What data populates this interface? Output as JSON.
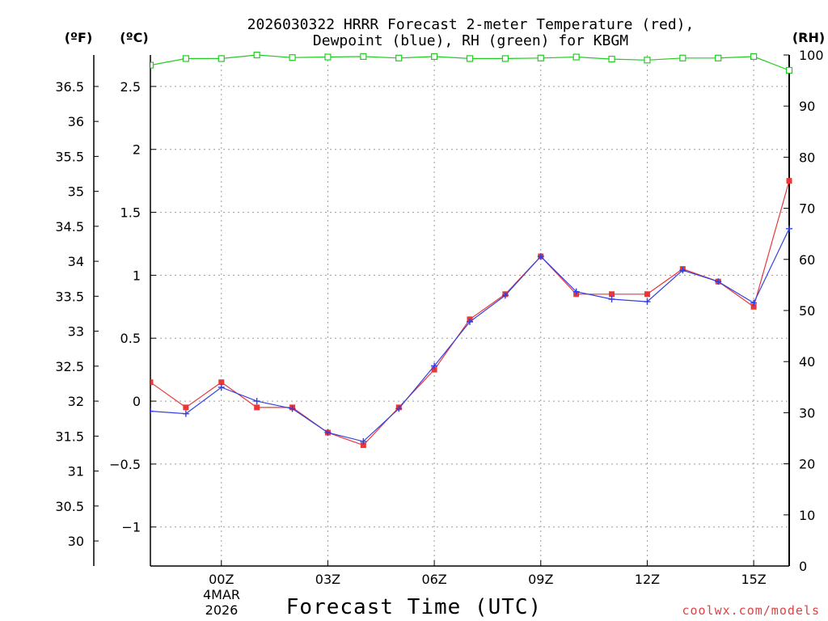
{
  "chart_data": {
    "type": "line",
    "title": "2026030322 HRRR Forecast 2-meter Temperature (red),",
    "subtitle": "Dewpoint (blue), RH (green) for KBGM",
    "xlabel": "Forecast Time (UTC)",
    "credit": "coolwx.com/models",
    "units": {
      "fahrenheit": "(ºF)",
      "celsius": "(ºC)",
      "rh": "(RH)"
    },
    "x_range": [
      22,
      40
    ],
    "x_ticks": [
      {
        "x": 24,
        "label": "00Z"
      },
      {
        "x": 27,
        "label": "03Z"
      },
      {
        "x": 30,
        "label": "06Z"
      },
      {
        "x": 33,
        "label": "09Z"
      },
      {
        "x": 36,
        "label": "12Z"
      },
      {
        "x": 39,
        "label": "15Z"
      }
    ],
    "date_label": [
      "4MAR",
      "2026"
    ],
    "celsius_range": [
      -1.31,
      2.75
    ],
    "celsius_ticks": [
      -1,
      -0.5,
      0,
      0.5,
      1,
      1.5,
      2,
      2.5
    ],
    "celsius_tick_labels": [
      "−1",
      "−0.5",
      "0",
      "0.5",
      "1",
      "1.5",
      "2",
      "2.5"
    ],
    "fahrenheit_ticks": [
      30,
      30.5,
      31,
      31.5,
      32,
      32.5,
      33,
      33.5,
      34,
      34.5,
      35,
      35.5,
      36,
      36.5
    ],
    "fahrenheit_tick_labels": [
      "30",
      "30.5",
      "31",
      "31.5",
      "32",
      "32.5",
      "33",
      "33.5",
      "34",
      "34.5",
      "35",
      "35.5",
      "36",
      "36.5"
    ],
    "rh_range": [
      0,
      100
    ],
    "rh_ticks": [
      0,
      10,
      20,
      30,
      40,
      50,
      60,
      70,
      80,
      90,
      100
    ],
    "rh_tick_labels": [
      "0",
      "10",
      "20",
      "30",
      "40",
      "50",
      "60",
      "70",
      "80",
      "90",
      "100"
    ],
    "x": [
      22,
      23,
      24,
      25,
      26,
      27,
      28,
      29,
      30,
      31,
      32,
      33,
      34,
      35,
      36,
      37,
      38,
      39,
      40
    ],
    "series": [
      {
        "name": "Temperature",
        "color": "#e8383a",
        "marker": "square",
        "axis": "celsius",
        "values": [
          0.15,
          -0.05,
          0.15,
          -0.05,
          -0.05,
          -0.25,
          -0.35,
          -0.05,
          0.25,
          0.65,
          0.85,
          1.15,
          0.85,
          0.85,
          0.85,
          1.05,
          0.95,
          0.75,
          1.75
        ]
      },
      {
        "name": "Dewpoint",
        "color": "#3040e0",
        "marker": "plus",
        "axis": "celsius",
        "values": [
          -0.08,
          -0.1,
          0.11,
          0.0,
          -0.06,
          -0.25,
          -0.32,
          -0.06,
          0.28,
          0.63,
          0.84,
          1.15,
          0.87,
          0.81,
          0.79,
          1.04,
          0.95,
          0.78,
          1.37
        ]
      },
      {
        "name": "RH",
        "color": "#22cc22",
        "marker": "open-square",
        "axis": "rh",
        "values": [
          98.0,
          99.3,
          99.3,
          100.0,
          99.5,
          99.6,
          99.7,
          99.4,
          99.7,
          99.3,
          99.3,
          99.4,
          99.6,
          99.2,
          99.0,
          99.4,
          99.4,
          99.7,
          97.0
        ]
      }
    ]
  }
}
